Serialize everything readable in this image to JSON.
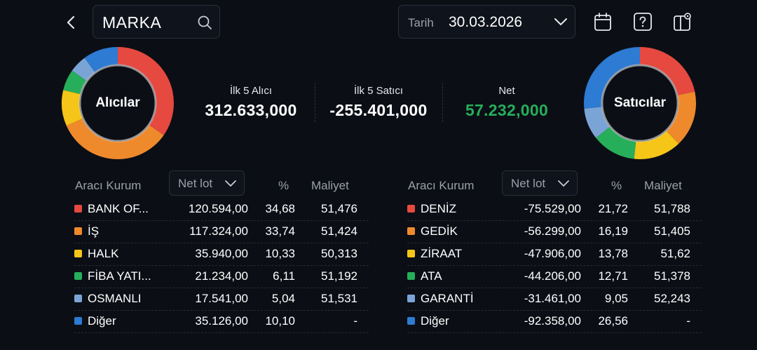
{
  "header": {
    "search_value": "MARKA",
    "date_label": "Tarih",
    "date_value": "30.03.2026"
  },
  "colors": {
    "red": "#e5493f",
    "orange": "#ee8a2c",
    "yellow": "#f5c518",
    "green": "#27ae5a",
    "lightblue": "#7ba4d6",
    "blue": "#2d7bd2",
    "net_positive": "#27ae5a"
  },
  "donuts": {
    "buyers": {
      "label": "Alıcılar",
      "segments": [
        {
          "color": "red",
          "percent": 34.68
        },
        {
          "color": "orange",
          "percent": 33.74
        },
        {
          "color": "yellow",
          "percent": 10.33
        },
        {
          "color": "green",
          "percent": 6.11
        },
        {
          "color": "lightblue",
          "percent": 5.04
        },
        {
          "color": "blue",
          "percent": 10.1
        }
      ]
    },
    "sellers": {
      "label": "Satıcılar",
      "segments": [
        {
          "color": "red",
          "percent": 21.72
        },
        {
          "color": "orange",
          "percent": 16.19
        },
        {
          "color": "yellow",
          "percent": 13.78
        },
        {
          "color": "green",
          "percent": 12.71
        },
        {
          "color": "lightblue",
          "percent": 9.05
        },
        {
          "color": "blue",
          "percent": 26.56
        }
      ]
    }
  },
  "summary": {
    "buyers_label": "İlk 5 Alıcı",
    "buyers_value": "312.633,000",
    "sellers_label": "İlk 5 Satıcı",
    "sellers_value": "-255.401,000",
    "net_label": "Net",
    "net_value": "57.232,000"
  },
  "buyers_table": {
    "col_broker": "Aracı Kurum",
    "col_netlot": "Net lot",
    "col_pct": "%",
    "col_cost": "Maliyet",
    "rows": [
      {
        "color": "red",
        "name": "BANK OF...",
        "netlot": "120.594,00",
        "pct": "34,68",
        "cost": "51,476"
      },
      {
        "color": "orange",
        "name": "İŞ",
        "netlot": "117.324,00",
        "pct": "33,74",
        "cost": "51,424"
      },
      {
        "color": "yellow",
        "name": "HALK",
        "netlot": "35.940,00",
        "pct": "10,33",
        "cost": "50,313"
      },
      {
        "color": "green",
        "name": "FİBA YATI...",
        "netlot": "21.234,00",
        "pct": "6,11",
        "cost": "51,192"
      },
      {
        "color": "lightblue",
        "name": "OSMANLI",
        "netlot": "17.541,00",
        "pct": "5,04",
        "cost": "51,531"
      },
      {
        "color": "blue",
        "name": "Diğer",
        "netlot": "35.126,00",
        "pct": "10,10",
        "cost": "-"
      }
    ]
  },
  "sellers_table": {
    "col_broker": "Aracı Kurum",
    "col_netlot": "Net lot",
    "col_pct": "%",
    "col_cost": "Maliyet",
    "rows": [
      {
        "color": "red",
        "name": "DENİZ",
        "netlot": "-75.529,00",
        "pct": "21,72",
        "cost": "51,788"
      },
      {
        "color": "orange",
        "name": "GEDİK",
        "netlot": "-56.299,00",
        "pct": "16,19",
        "cost": "51,405"
      },
      {
        "color": "yellow",
        "name": "ZİRAAT",
        "netlot": "-47.906,00",
        "pct": "13,78",
        "cost": "51,62"
      },
      {
        "color": "green",
        "name": "ATA",
        "netlot": "-44.206,00",
        "pct": "12,71",
        "cost": "51,378"
      },
      {
        "color": "lightblue",
        "name": "GARANTİ",
        "netlot": "-31.461,00",
        "pct": "9,05",
        "cost": "52,243"
      },
      {
        "color": "blue",
        "name": "Diğer",
        "netlot": "-92.358,00",
        "pct": "26,56",
        "cost": "-"
      }
    ]
  }
}
